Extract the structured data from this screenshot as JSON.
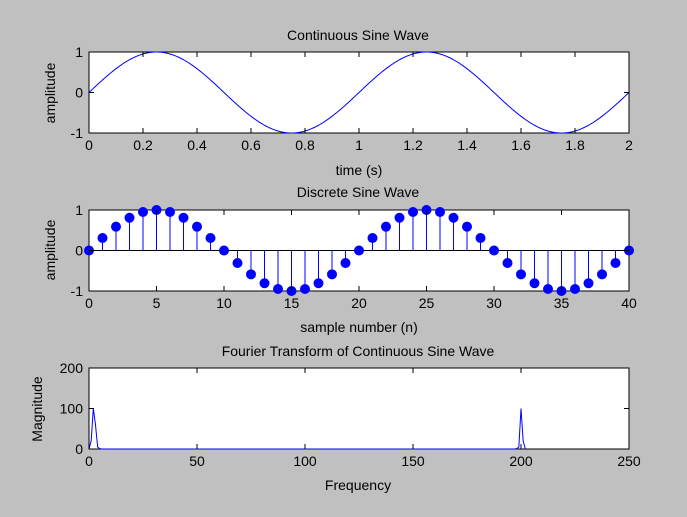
{
  "figure": {
    "background": "#c0c0c0",
    "axes_background": "#ffffff",
    "line_color": "#0000ff"
  },
  "chart_data": [
    {
      "type": "line",
      "title": "Continuous Sine Wave",
      "xlabel": "time (s)",
      "ylabel": "amplitude",
      "xlim": [
        0,
        2
      ],
      "ylim": [
        -1,
        1
      ],
      "xticks": [
        0,
        0.2,
        0.4,
        0.6,
        0.8,
        1,
        1.2,
        1.4,
        1.6,
        1.8,
        2
      ],
      "xtick_labels": [
        "0",
        "0.2",
        "0.4",
        "0.6",
        "0.8",
        "1",
        "1.2",
        "1.4",
        "1.6",
        "1.8",
        "2"
      ],
      "yticks": [
        -1,
        0,
        1
      ],
      "ytick_labels": [
        "-1",
        "0",
        "1"
      ],
      "grid": false,
      "series": [
        {
          "frequency_hz": 1,
          "x": [
            0,
            0.05,
            0.1,
            0.15,
            0.2,
            0.25,
            0.3,
            0.35,
            0.4,
            0.45,
            0.5,
            0.55,
            0.6,
            0.65,
            0.7,
            0.75,
            0.8,
            0.85,
            0.9,
            0.95,
            1,
            1.05,
            1.1,
            1.15,
            1.2,
            1.25,
            1.3,
            1.35,
            1.4,
            1.45,
            1.5,
            1.55,
            1.6,
            1.65,
            1.7,
            1.75,
            1.8,
            1.85,
            1.9,
            1.95,
            2
          ],
          "y": [
            0,
            0.309,
            0.588,
            0.809,
            0.951,
            1,
            0.951,
            0.809,
            0.588,
            0.309,
            0,
            -0.309,
            -0.588,
            -0.809,
            -0.951,
            -1,
            -0.951,
            -0.809,
            -0.588,
            -0.309,
            0,
            0.309,
            0.588,
            0.809,
            0.951,
            1,
            0.951,
            0.809,
            0.588,
            0.309,
            0,
            -0.309,
            -0.588,
            -0.809,
            -0.951,
            -1,
            -0.951,
            -0.809,
            -0.588,
            -0.309,
            0
          ]
        }
      ]
    },
    {
      "type": "stem",
      "title": "Discrete Sine Wave",
      "xlabel": "sample number (n)",
      "ylabel": "amplitude",
      "xlim": [
        0,
        40
      ],
      "ylim": [
        -1,
        1
      ],
      "xticks": [
        0,
        5,
        10,
        15,
        20,
        25,
        30,
        35,
        40
      ],
      "xtick_labels": [
        "0",
        "5",
        "10",
        "15",
        "20",
        "25",
        "30",
        "35",
        "40"
      ],
      "yticks": [
        -1,
        0,
        1
      ],
      "ytick_labels": [
        "-1",
        "0",
        "1"
      ],
      "grid": false,
      "n": [
        0,
        1,
        2,
        3,
        4,
        5,
        6,
        7,
        8,
        9,
        10,
        11,
        12,
        13,
        14,
        15,
        16,
        17,
        18,
        19,
        20,
        21,
        22,
        23,
        24,
        25,
        26,
        27,
        28,
        29,
        30,
        31,
        32,
        33,
        34,
        35,
        36,
        37,
        38,
        39,
        40
      ],
      "values": [
        0,
        0.309,
        0.588,
        0.809,
        0.951,
        1,
        0.951,
        0.809,
        0.588,
        0.309,
        0,
        -0.309,
        -0.588,
        -0.809,
        -0.951,
        -1,
        -0.951,
        -0.809,
        -0.588,
        -0.309,
        0,
        0.309,
        0.588,
        0.809,
        0.951,
        1,
        0.951,
        0.809,
        0.588,
        0.309,
        0,
        -0.309,
        -0.588,
        -0.809,
        -0.951,
        -1,
        -0.951,
        -0.809,
        -0.588,
        -0.309,
        0
      ]
    },
    {
      "type": "line",
      "title": "Fourier Transform of Continuous Sine Wave",
      "xlabel": "Frequency",
      "ylabel": "Magnitude",
      "xlim": [
        0,
        250
      ],
      "ylim": [
        0,
        200
      ],
      "xticks": [
        0,
        50,
        100,
        150,
        200,
        250
      ],
      "xtick_labels": [
        "0",
        "50",
        "100",
        "150",
        "200",
        "250"
      ],
      "yticks": [
        0,
        100,
        200
      ],
      "ytick_labels": [
        "0",
        "100",
        "200"
      ],
      "grid": false,
      "series": [
        {
          "x": [
            0,
            1,
            2,
            3,
            4,
            5,
            6,
            197,
            198,
            199,
            200,
            201,
            202
          ],
          "y": [
            0,
            20,
            100,
            60,
            5,
            1,
            0,
            0,
            1,
            5,
            100,
            20,
            0
          ]
        }
      ]
    }
  ]
}
